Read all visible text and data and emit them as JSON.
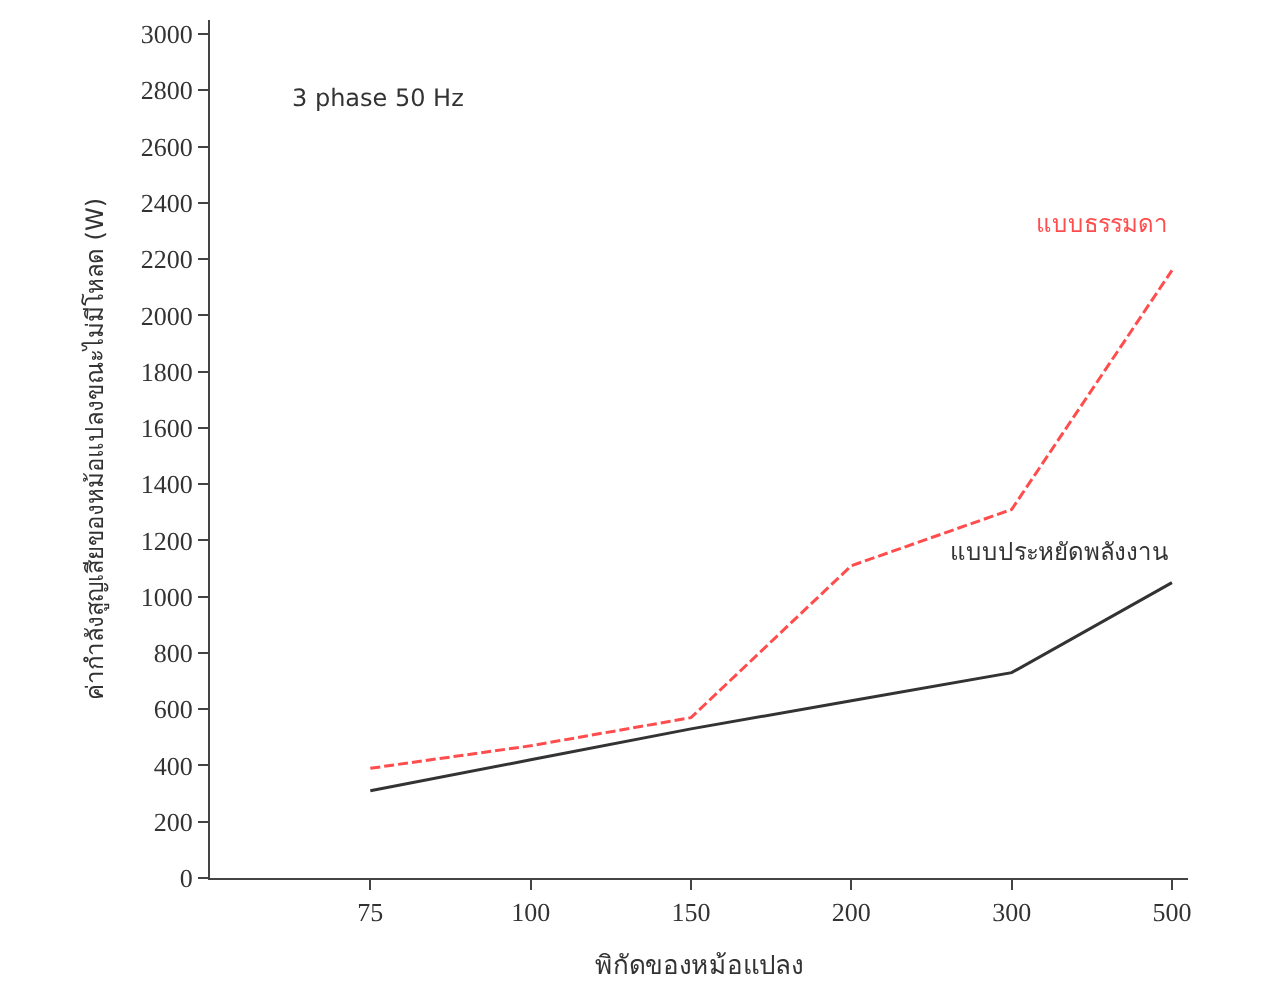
{
  "chart_data": {
    "type": "line",
    "xlabel": "พิกัดของหม้อแปลง",
    "ylabel": "ค่ากำลังสูญเสียของหม้อแปลงขณะไม่มีโหลด (W)",
    "categories": [
      "75",
      "100",
      "150",
      "200",
      "300",
      "500"
    ],
    "series": [
      {
        "name": "แบบธรรมดา",
        "color": "#ff4d4d",
        "line_style": "dashed",
        "values": [
          390,
          470,
          570,
          1110,
          1310,
          2160
        ]
      },
      {
        "name": "แบบประหยัดพลังงาน",
        "color": "#333333",
        "line_style": "solid",
        "values": [
          310,
          420,
          530,
          630,
          730,
          1050
        ]
      }
    ],
    "annotations": [
      "3 phase 50 Hz"
    ],
    "ylim": [
      0,
      3050
    ],
    "yticks": [
      0,
      200,
      400,
      600,
      800,
      1000,
      1200,
      1400,
      1600,
      1800,
      2000,
      2200,
      2400,
      2600,
      2800,
      3000
    ],
    "legend": false,
    "marker": "none"
  }
}
